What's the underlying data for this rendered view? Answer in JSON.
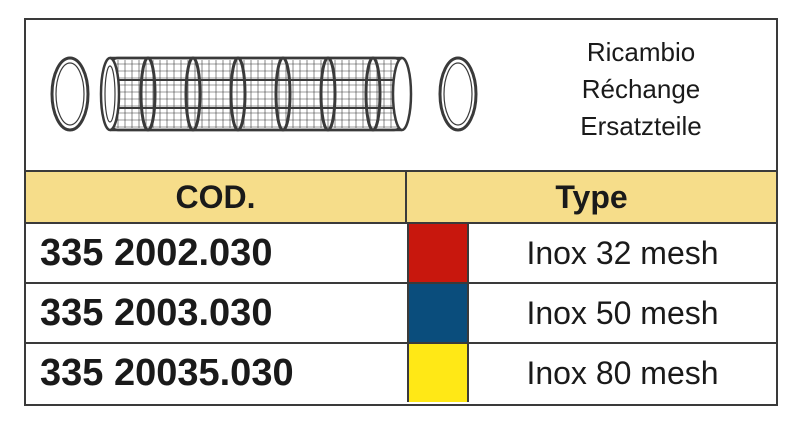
{
  "header": {
    "languages": [
      "Ricambio",
      "Réchange",
      "Ersatzteile"
    ]
  },
  "table": {
    "columns": {
      "code": "COD.",
      "type": "Type"
    },
    "rows": [
      {
        "code": "335 2002.030",
        "color": "#c8170d",
        "type": "Inox 32 mesh"
      },
      {
        "code": "335 2003.030",
        "color": "#0a4d7c",
        "type": "Inox 50 mesh"
      },
      {
        "code": "335 20035.030",
        "color": "#ffe816",
        "type": "Inox 80 mesh"
      }
    ]
  },
  "colors": {
    "header_band": "#f6dd8a",
    "border": "#3a3a3a"
  },
  "illustration": {
    "icon": "filter-cartridge-icon"
  }
}
